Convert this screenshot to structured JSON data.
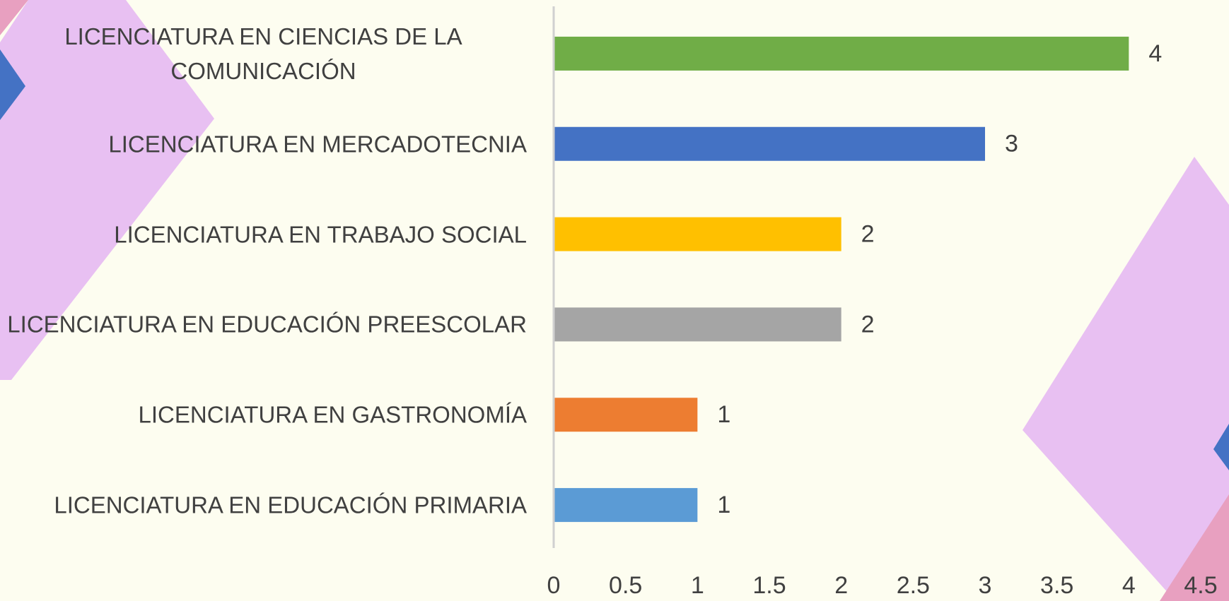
{
  "chart_data": {
    "type": "bar",
    "orientation": "horizontal",
    "categories": [
      "LICENCIATURA EN CIENCIAS DE LA COMUNICACIÓN",
      "LICENCIATURA EN MERCADOTECNIA",
      "LICENCIATURA EN TRABAJO SOCIAL",
      "LICENCIATURA EN EDUCACIÓN PREESCOLAR",
      "LICENCIATURA EN GASTRONOMÍA",
      "LICENCIATURA EN EDUCACIÓN PRIMARIA"
    ],
    "values": [
      4,
      3,
      2,
      2,
      1,
      1
    ],
    "colors": [
      "#70ad47",
      "#4472c4",
      "#ffc000",
      "#a5a5a5",
      "#ed7d31",
      "#5b9bd5"
    ],
    "xlim": [
      0,
      4.5
    ],
    "xticks": [
      0,
      0.5,
      1,
      1.5,
      2,
      2.5,
      3,
      3.5,
      4,
      4.5
    ],
    "grid": false
  }
}
